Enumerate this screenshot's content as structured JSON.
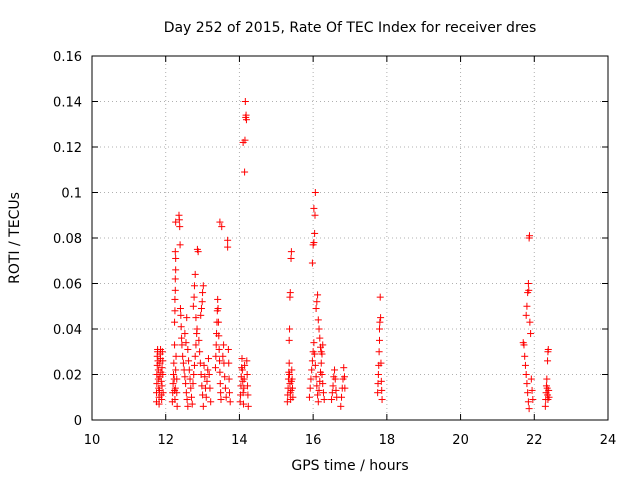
{
  "chart_data": {
    "type": "scatter",
    "title": "Day 252 of 2015, Rate Of TEC Index for receiver dres",
    "xlabel": "GPS time / hours",
    "ylabel": "ROTI / TECUs",
    "xlim": [
      10,
      24
    ],
    "ylim": [
      0,
      0.16
    ],
    "xticks": [
      "10",
      "12",
      "14",
      "16",
      "18",
      "20",
      "22",
      "24"
    ],
    "yticks": [
      "0",
      "0.02",
      "0.04",
      "0.06",
      "0.08",
      "0.1",
      "0.12",
      "0.14",
      "0.16"
    ],
    "grid": true,
    "marker": "+",
    "color": "#ff0000",
    "points": [
      [
        11.75,
        0.008
      ],
      [
        11.75,
        0.012
      ],
      [
        11.76,
        0.016
      ],
      [
        11.76,
        0.02
      ],
      [
        11.77,
        0.024
      ],
      [
        11.77,
        0.028
      ],
      [
        11.78,
        0.031
      ],
      [
        11.78,
        0.03
      ],
      [
        11.79,
        0.026
      ],
      [
        11.8,
        0.022
      ],
      [
        11.8,
        0.018
      ],
      [
        11.81,
        0.014
      ],
      [
        11.82,
        0.01
      ],
      [
        11.82,
        0.007
      ],
      [
        11.83,
        0.013
      ],
      [
        11.84,
        0.019
      ],
      [
        11.84,
        0.025
      ],
      [
        11.85,
        0.029
      ],
      [
        11.86,
        0.031
      ],
      [
        11.86,
        0.027
      ],
      [
        11.87,
        0.021
      ],
      [
        11.88,
        0.017
      ],
      [
        11.88,
        0.011
      ],
      [
        11.89,
        0.009
      ],
      [
        11.9,
        0.015
      ],
      [
        11.9,
        0.023
      ],
      [
        11.91,
        0.03
      ],
      [
        11.92,
        0.026
      ],
      [
        11.92,
        0.02
      ],
      [
        11.93,
        0.012
      ],
      [
        12.18,
        0.008
      ],
      [
        12.19,
        0.012
      ],
      [
        12.2,
        0.016
      ],
      [
        12.21,
        0.02
      ],
      [
        12.22,
        0.025
      ],
      [
        12.23,
        0.018
      ],
      [
        12.24,
        0.013
      ],
      [
        12.25,
        0.009
      ],
      [
        12.26,
        0.014
      ],
      [
        12.27,
        0.022
      ],
      [
        12.28,
        0.028
      ],
      [
        12.24,
        0.033
      ],
      [
        12.24,
        0.043
      ],
      [
        12.25,
        0.048
      ],
      [
        12.25,
        0.053
      ],
      [
        12.26,
        0.057
      ],
      [
        12.26,
        0.062
      ],
      [
        12.27,
        0.066
      ],
      [
        12.27,
        0.071
      ],
      [
        12.26,
        0.074
      ],
      [
        12.27,
        0.087
      ],
      [
        12.3,
        0.018
      ],
      [
        12.3,
        0.012
      ],
      [
        12.31,
        0.006
      ],
      [
        12.36,
        0.09
      ],
      [
        12.37,
        0.088
      ],
      [
        12.38,
        0.085
      ],
      [
        12.39,
        0.077
      ],
      [
        12.4,
        0.049
      ],
      [
        12.41,
        0.046
      ],
      [
        12.42,
        0.041
      ],
      [
        12.43,
        0.036
      ],
      [
        12.44,
        0.033
      ],
      [
        12.46,
        0.028
      ],
      [
        12.48,
        0.025
      ],
      [
        12.5,
        0.022
      ],
      [
        12.52,
        0.019
      ],
      [
        12.54,
        0.016
      ],
      [
        12.56,
        0.012
      ],
      [
        12.58,
        0.009
      ],
      [
        12.6,
        0.006
      ],
      [
        12.52,
        0.038
      ],
      [
        12.55,
        0.034
      ],
      [
        12.57,
        0.045
      ],
      [
        12.6,
        0.031
      ],
      [
        12.62,
        0.026
      ],
      [
        12.64,
        0.022
      ],
      [
        12.66,
        0.018
      ],
      [
        12.68,
        0.014
      ],
      [
        12.7,
        0.01
      ],
      [
        12.72,
        0.007
      ],
      [
        12.74,
        0.016
      ],
      [
        12.76,
        0.02
      ],
      [
        12.78,
        0.024
      ],
      [
        12.8,
        0.028
      ],
      [
        12.82,
        0.033
      ],
      [
        12.84,
        0.038
      ],
      [
        12.75,
        0.05
      ],
      [
        12.77,
        0.054
      ],
      [
        12.78,
        0.059
      ],
      [
        12.8,
        0.064
      ],
      [
        12.82,
        0.045
      ],
      [
        12.85,
        0.04
      ],
      [
        12.86,
        0.075
      ],
      [
        12.88,
        0.074
      ],
      [
        12.9,
        0.035
      ],
      [
        12.92,
        0.03
      ],
      [
        12.94,
        0.025
      ],
      [
        12.96,
        0.02
      ],
      [
        12.98,
        0.015
      ],
      [
        13.0,
        0.011
      ],
      [
        13.02,
        0.006
      ],
      [
        12.95,
        0.046
      ],
      [
        12.97,
        0.049
      ],
      [
        12.99,
        0.052
      ],
      [
        13.0,
        0.056
      ],
      [
        13.02,
        0.059
      ],
      [
        13.04,
        0.024
      ],
      [
        13.06,
        0.019
      ],
      [
        13.08,
        0.014
      ],
      [
        13.1,
        0.01
      ],
      [
        13.12,
        0.017
      ],
      [
        13.14,
        0.022
      ],
      [
        13.16,
        0.027
      ],
      [
        13.18,
        0.02
      ],
      [
        13.2,
        0.014
      ],
      [
        13.22,
        0.008
      ],
      [
        13.35,
        0.023
      ],
      [
        13.36,
        0.028
      ],
      [
        13.37,
        0.033
      ],
      [
        13.38,
        0.038
      ],
      [
        13.39,
        0.043
      ],
      [
        13.4,
        0.048
      ],
      [
        13.41,
        0.053
      ],
      [
        13.42,
        0.049
      ],
      [
        13.43,
        0.043
      ],
      [
        13.44,
        0.037
      ],
      [
        13.45,
        0.031
      ],
      [
        13.46,
        0.026
      ],
      [
        13.47,
        0.021
      ],
      [
        13.48,
        0.016
      ],
      [
        13.49,
        0.012
      ],
      [
        13.5,
        0.009
      ],
      [
        13.47,
        0.087
      ],
      [
        13.52,
        0.085
      ],
      [
        13.55,
        0.028
      ],
      [
        13.57,
        0.033
      ],
      [
        13.58,
        0.025
      ],
      [
        13.6,
        0.019
      ],
      [
        13.62,
        0.014
      ],
      [
        13.64,
        0.01
      ],
      [
        13.68,
        0.076
      ],
      [
        13.68,
        0.079
      ],
      [
        13.7,
        0.031
      ],
      [
        13.71,
        0.025
      ],
      [
        13.72,
        0.018
      ],
      [
        13.73,
        0.012
      ],
      [
        13.75,
        0.008
      ],
      [
        14.02,
        0.008
      ],
      [
        14.03,
        0.011
      ],
      [
        14.04,
        0.015
      ],
      [
        14.05,
        0.019
      ],
      [
        14.06,
        0.023
      ],
      [
        14.07,
        0.027
      ],
      [
        14.08,
        0.022
      ],
      [
        14.09,
        0.017
      ],
      [
        14.1,
        0.012
      ],
      [
        14.11,
        0.007
      ],
      [
        14.12,
        0.014
      ],
      [
        14.13,
        0.018
      ],
      [
        14.14,
        0.024
      ],
      [
        14.14,
        0.109
      ],
      [
        14.1,
        0.122
      ],
      [
        14.15,
        0.123
      ],
      [
        14.17,
        0.133
      ],
      [
        14.18,
        0.134
      ],
      [
        14.19,
        0.132
      ],
      [
        14.16,
        0.14
      ],
      [
        14.2,
        0.026
      ],
      [
        14.21,
        0.02
      ],
      [
        14.22,
        0.015
      ],
      [
        14.23,
        0.011
      ],
      [
        14.24,
        0.006
      ],
      [
        15.3,
        0.008
      ],
      [
        15.31,
        0.011
      ],
      [
        15.32,
        0.014
      ],
      [
        15.33,
        0.018
      ],
      [
        15.34,
        0.021
      ],
      [
        15.35,
        0.025
      ],
      [
        15.36,
        0.02
      ],
      [
        15.37,
        0.016
      ],
      [
        15.38,
        0.012
      ],
      [
        15.39,
        0.009
      ],
      [
        15.4,
        0.013
      ],
      [
        15.41,
        0.017
      ],
      [
        15.35,
        0.035
      ],
      [
        15.36,
        0.04
      ],
      [
        15.37,
        0.054
      ],
      [
        15.38,
        0.056
      ],
      [
        15.4,
        0.071
      ],
      [
        15.41,
        0.074
      ],
      [
        15.42,
        0.022
      ],
      [
        15.43,
        0.018
      ],
      [
        15.44,
        0.014
      ],
      [
        15.45,
        0.01
      ],
      [
        15.9,
        0.01
      ],
      [
        15.92,
        0.014
      ],
      [
        15.94,
        0.018
      ],
      [
        15.96,
        0.022
      ],
      [
        15.98,
        0.026
      ],
      [
        16.0,
        0.03
      ],
      [
        16.02,
        0.034
      ],
      [
        16.04,
        0.029
      ],
      [
        16.06,
        0.024
      ],
      [
        16.08,
        0.019
      ],
      [
        16.1,
        0.015
      ],
      [
        16.12,
        0.011
      ],
      [
        16.14,
        0.008
      ],
      [
        16.16,
        0.013
      ],
      [
        16.18,
        0.017
      ],
      [
        16.2,
        0.021
      ],
      [
        16.22,
        0.025
      ],
      [
        16.24,
        0.029
      ],
      [
        16.26,
        0.033
      ],
      [
        15.98,
        0.069
      ],
      [
        16.0,
        0.077
      ],
      [
        16.02,
        0.078
      ],
      [
        16.04,
        0.082
      ],
      [
        16.05,
        0.09
      ],
      [
        16.02,
        0.093
      ],
      [
        16.06,
        0.1
      ],
      [
        16.08,
        0.049
      ],
      [
        16.1,
        0.052
      ],
      [
        16.12,
        0.055
      ],
      [
        16.14,
        0.044
      ],
      [
        16.16,
        0.04
      ],
      [
        16.18,
        0.036
      ],
      [
        16.2,
        0.032
      ],
      [
        16.22,
        0.03
      ],
      [
        16.24,
        0.02
      ],
      [
        16.26,
        0.016
      ],
      [
        16.28,
        0.012
      ],
      [
        16.3,
        0.009
      ],
      [
        16.5,
        0.009
      ],
      [
        16.52,
        0.012
      ],
      [
        16.54,
        0.015
      ],
      [
        16.56,
        0.019
      ],
      [
        16.58,
        0.022
      ],
      [
        16.6,
        0.018
      ],
      [
        16.62,
        0.013
      ],
      [
        16.64,
        0.01
      ],
      [
        16.75,
        0.006
      ],
      [
        16.77,
        0.01
      ],
      [
        16.79,
        0.014
      ],
      [
        16.81,
        0.018
      ],
      [
        16.83,
        0.023
      ],
      [
        16.85,
        0.019
      ],
      [
        16.86,
        0.014
      ],
      [
        17.75,
        0.012
      ],
      [
        17.76,
        0.016
      ],
      [
        17.77,
        0.02
      ],
      [
        17.78,
        0.024
      ],
      [
        17.79,
        0.03
      ],
      [
        17.8,
        0.035
      ],
      [
        17.8,
        0.04
      ],
      [
        17.81,
        0.043
      ],
      [
        17.82,
        0.054
      ],
      [
        17.83,
        0.045
      ],
      [
        17.84,
        0.025
      ],
      [
        17.85,
        0.017
      ],
      [
        17.86,
        0.013
      ],
      [
        17.87,
        0.009
      ],
      [
        21.7,
        0.034
      ],
      [
        21.72,
        0.033
      ],
      [
        21.74,
        0.028
      ],
      [
        21.76,
        0.024
      ],
      [
        21.78,
        0.02
      ],
      [
        21.8,
        0.016
      ],
      [
        21.82,
        0.012
      ],
      [
        21.84,
        0.008
      ],
      [
        21.86,
        0.005
      ],
      [
        21.78,
        0.046
      ],
      [
        21.8,
        0.05
      ],
      [
        21.82,
        0.056
      ],
      [
        21.84,
        0.06
      ],
      [
        21.85,
        0.057
      ],
      [
        21.86,
        0.08
      ],
      [
        21.87,
        0.081
      ],
      [
        21.88,
        0.043
      ],
      [
        21.9,
        0.038
      ],
      [
        21.92,
        0.018
      ],
      [
        21.94,
        0.013
      ],
      [
        21.96,
        0.009
      ],
      [
        22.3,
        0.006
      ],
      [
        22.31,
        0.009
      ],
      [
        22.32,
        0.012
      ],
      [
        22.33,
        0.015
      ],
      [
        22.34,
        0.018
      ],
      [
        22.35,
        0.014
      ],
      [
        22.36,
        0.011
      ],
      [
        22.37,
        0.009
      ],
      [
        22.36,
        0.026
      ],
      [
        22.37,
        0.03
      ],
      [
        22.38,
        0.031
      ],
      [
        22.39,
        0.013
      ],
      [
        22.4,
        0.01
      ]
    ]
  }
}
